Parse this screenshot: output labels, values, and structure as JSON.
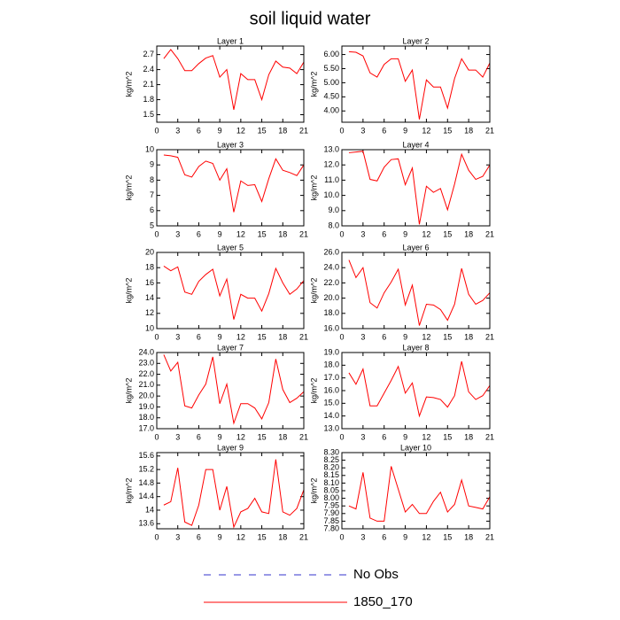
{
  "title": "soil liquid water",
  "legend": [
    {
      "name": "No Obs",
      "color": "#3333cc",
      "dashed": true
    },
    {
      "name": "1850_170",
      "color": "#ff0000"
    }
  ],
  "chart_data": [
    {
      "type": "line",
      "title": "Layer 1",
      "ylabel": "kg/m^2",
      "color": "#ff0000",
      "x": [
        1,
        2,
        3,
        4,
        5,
        6,
        7,
        8,
        9,
        10,
        11,
        12,
        13,
        14,
        15,
        16,
        17,
        18,
        19,
        20,
        21
      ],
      "values": [
        2.62,
        2.8,
        2.62,
        2.38,
        2.38,
        2.52,
        2.63,
        2.68,
        2.25,
        2.4,
        1.6,
        2.32,
        2.2,
        2.2,
        1.8,
        2.3,
        2.57,
        2.45,
        2.43,
        2.32,
        2.55
      ],
      "xlim": [
        0,
        21
      ],
      "xticks": [
        0,
        3,
        6,
        9,
        12,
        15,
        18,
        21
      ],
      "ylim": [
        1.35,
        2.87
      ],
      "yticks": [
        1.5,
        1.8,
        2.1,
        2.4,
        2.7
      ]
    },
    {
      "type": "line",
      "title": "Layer 2",
      "ylabel": "kg/m^2",
      "color": "#ff0000",
      "x": [
        1,
        2,
        3,
        4,
        5,
        6,
        7,
        8,
        9,
        10,
        11,
        12,
        13,
        14,
        15,
        16,
        17,
        18,
        19,
        20,
        21
      ],
      "values": [
        6.1,
        6.08,
        5.95,
        5.35,
        5.2,
        5.65,
        5.85,
        5.85,
        5.05,
        5.45,
        3.7,
        5.1,
        4.85,
        4.85,
        4.1,
        5.15,
        5.85,
        5.45,
        5.45,
        5.2,
        5.7
      ],
      "xlim": [
        0,
        21
      ],
      "xticks": [
        0,
        3,
        6,
        9,
        12,
        15,
        18,
        21
      ],
      "ylim": [
        3.6,
        6.3
      ],
      "yticks": [
        {
          "value": 4,
          "label": "4.00"
        },
        {
          "value": 4.5,
          "label": "4.50"
        },
        {
          "value": 5,
          "label": "5.00"
        },
        {
          "value": 5.5,
          "label": "5.50"
        },
        {
          "value": 6,
          "label": "6.00"
        }
      ]
    },
    {
      "type": "line",
      "title": "Layer 3",
      "ylabel": "kg/m^2",
      "color": "#ff0000",
      "x": [
        1,
        2,
        3,
        4,
        5,
        6,
        7,
        8,
        9,
        10,
        11,
        12,
        13,
        14,
        15,
        16,
        17,
        18,
        19,
        20,
        21
      ],
      "values": [
        9.65,
        9.6,
        9.5,
        8.35,
        8.2,
        8.9,
        9.25,
        9.1,
        8.0,
        8.75,
        5.9,
        7.95,
        7.65,
        7.7,
        6.6,
        8.1,
        9.4,
        8.65,
        8.5,
        8.3,
        9.0
      ],
      "xlim": [
        0,
        21
      ],
      "xticks": [
        0,
        3,
        6,
        9,
        12,
        15,
        18,
        21
      ],
      "ylim": [
        5,
        10
      ],
      "yticks": [
        5,
        6,
        7,
        8,
        9,
        10
      ]
    },
    {
      "type": "line",
      "title": "Layer 4",
      "ylabel": "kg/m^2",
      "color": "#ff0000",
      "x": [
        1,
        2,
        3,
        4,
        5,
        6,
        7,
        8,
        9,
        10,
        11,
        12,
        13,
        14,
        15,
        16,
        17,
        18,
        19,
        20,
        21
      ],
      "values": [
        12.8,
        12.85,
        12.9,
        11.05,
        10.95,
        11.85,
        12.35,
        12.4,
        10.7,
        11.8,
        8.1,
        10.6,
        10.2,
        10.45,
        9.05,
        10.75,
        12.7,
        11.65,
        11.05,
        11.25,
        12.0
      ],
      "xlim": [
        0,
        21
      ],
      "xticks": [
        0,
        3,
        6,
        9,
        12,
        15,
        18,
        21
      ],
      "ylim": [
        8,
        13
      ],
      "yticks": [
        {
          "value": 8,
          "label": "8.0"
        },
        {
          "value": 9,
          "label": "9.0"
        },
        {
          "value": 10,
          "label": "10.0"
        },
        {
          "value": 11,
          "label": "11.0"
        },
        {
          "value": 12,
          "label": "12.0"
        },
        {
          "value": 13,
          "label": "13.0"
        }
      ]
    },
    {
      "type": "line",
      "title": "Layer 5",
      "ylabel": "kg/m^2",
      "color": "#ff0000",
      "x": [
        1,
        2,
        3,
        4,
        5,
        6,
        7,
        8,
        9,
        10,
        11,
        12,
        13,
        14,
        15,
        16,
        17,
        18,
        19,
        20,
        21
      ],
      "values": [
        18.2,
        17.6,
        18.1,
        14.8,
        14.5,
        16.2,
        17.1,
        17.8,
        14.3,
        16.5,
        11.2,
        14.5,
        14.0,
        14.0,
        12.3,
        14.6,
        17.9,
        16.0,
        14.5,
        15.2,
        16.3
      ],
      "xlim": [
        0,
        21
      ],
      "xticks": [
        0,
        3,
        6,
        9,
        12,
        15,
        18,
        21
      ],
      "ylim": [
        10,
        20
      ],
      "yticks": [
        10,
        12,
        14,
        16,
        18,
        20
      ]
    },
    {
      "type": "line",
      "title": "Layer 6",
      "ylabel": "kg/m^2",
      "color": "#ff0000",
      "x": [
        1,
        2,
        3,
        4,
        5,
        6,
        7,
        8,
        9,
        10,
        11,
        12,
        13,
        14,
        15,
        16,
        17,
        18,
        19,
        20,
        21
      ],
      "values": [
        25.0,
        22.7,
        24.0,
        19.4,
        18.7,
        20.7,
        22.1,
        23.8,
        19.1,
        21.7,
        16.4,
        19.2,
        19.1,
        18.5,
        17.1,
        19.2,
        23.9,
        20.5,
        19.2,
        19.7,
        20.7
      ],
      "xlim": [
        0,
        21
      ],
      "xticks": [
        0,
        3,
        6,
        9,
        12,
        15,
        18,
        21
      ],
      "ylim": [
        16,
        26
      ],
      "yticks": [
        {
          "value": 16,
          "label": "16.0"
        },
        {
          "value": 18,
          "label": "18.0"
        },
        {
          "value": 20,
          "label": "20.0"
        },
        {
          "value": 22,
          "label": "22.0"
        },
        {
          "value": 24,
          "label": "24.0"
        },
        {
          "value": 26,
          "label": "26.0"
        }
      ]
    },
    {
      "type": "line",
      "title": "Layer 7",
      "ylabel": "kg/m^2",
      "color": "#ff0000",
      "x": [
        1,
        2,
        3,
        4,
        5,
        6,
        7,
        8,
        9,
        10,
        11,
        12,
        13,
        14,
        15,
        16,
        17,
        18,
        19,
        20,
        21
      ],
      "values": [
        23.8,
        22.3,
        23.1,
        19.1,
        18.9,
        20.1,
        21.1,
        23.6,
        19.3,
        21.1,
        17.5,
        19.3,
        19.3,
        18.9,
        17.9,
        19.4,
        23.4,
        20.6,
        19.4,
        19.8,
        20.4
      ],
      "xlim": [
        0,
        21
      ],
      "xticks": [
        0,
        3,
        6,
        9,
        12,
        15,
        18,
        21
      ],
      "ylim": [
        17,
        24
      ],
      "yticks": [
        {
          "value": 17,
          "label": "17.0"
        },
        {
          "value": 18,
          "label": "18.0"
        },
        {
          "value": 19,
          "label": "19.0"
        },
        {
          "value": 20,
          "label": "20.0"
        },
        {
          "value": 21,
          "label": "21.0"
        },
        {
          "value": 22,
          "label": "22.0"
        },
        {
          "value": 23,
          "label": "23.0"
        },
        {
          "value": 24,
          "label": "24.0"
        }
      ]
    },
    {
      "type": "line",
      "title": "Layer 8",
      "ylabel": "kg/m^2",
      "color": "#ff0000",
      "x": [
        1,
        2,
        3,
        4,
        5,
        6,
        7,
        8,
        9,
        10,
        11,
        12,
        13,
        14,
        15,
        16,
        17,
        18,
        19,
        20,
        21
      ],
      "values": [
        17.4,
        16.5,
        17.7,
        14.8,
        14.8,
        15.8,
        16.8,
        17.9,
        15.8,
        16.6,
        14.0,
        15.5,
        15.45,
        15.3,
        14.7,
        15.6,
        18.3,
        15.9,
        15.3,
        15.6,
        16.4
      ],
      "xlim": [
        0,
        21
      ],
      "xticks": [
        0,
        3,
        6,
        9,
        12,
        15,
        18,
        21
      ],
      "ylim": [
        13,
        19
      ],
      "yticks": [
        {
          "value": 13,
          "label": "13.0"
        },
        {
          "value": 14,
          "label": "14.0"
        },
        {
          "value": 15,
          "label": "15.0"
        },
        {
          "value": 16,
          "label": "16.0"
        },
        {
          "value": 17,
          "label": "17.0"
        },
        {
          "value": 18,
          "label": "18.0"
        },
        {
          "value": 19,
          "label": "19.0"
        }
      ]
    },
    {
      "type": "line",
      "title": "Layer 9",
      "ylabel": "kg/m^2",
      "color": "#ff0000",
      "x": [
        1,
        2,
        3,
        4,
        5,
        6,
        7,
        8,
        9,
        10,
        11,
        12,
        13,
        14,
        15,
        16,
        17,
        18,
        19,
        20,
        21
      ],
      "values": [
        14.15,
        14.25,
        15.25,
        13.65,
        13.55,
        14.15,
        15.2,
        15.2,
        14.0,
        14.7,
        13.5,
        13.95,
        14.05,
        14.35,
        13.95,
        13.9,
        15.5,
        13.95,
        13.85,
        14.05,
        14.6
      ],
      "xlim": [
        0,
        21
      ],
      "xticks": [
        0,
        3,
        6,
        9,
        12,
        15,
        18,
        21
      ],
      "ylim": [
        13.45,
        15.7
      ],
      "yticks": [
        13.6,
        14.0,
        14.4,
        14.8,
        15.2,
        15.6
      ]
    },
    {
      "type": "line",
      "title": "Layer 10",
      "ylabel": "kg/m^2",
      "color": "#ff0000",
      "x": [
        1,
        2,
        3,
        4,
        5,
        6,
        7,
        8,
        9,
        10,
        11,
        12,
        13,
        14,
        15,
        16,
        17,
        18,
        19,
        20,
        21
      ],
      "values": [
        7.95,
        7.93,
        8.17,
        7.87,
        7.85,
        7.85,
        8.21,
        8.06,
        7.91,
        7.96,
        7.9,
        7.9,
        7.98,
        8.04,
        7.91,
        7.96,
        8.12,
        7.95,
        7.94,
        7.93,
        8.01
      ],
      "xlim": [
        0,
        21
      ],
      "xticks": [
        0,
        3,
        6,
        9,
        12,
        15,
        18,
        21
      ],
      "ylim": [
        7.8,
        8.3
      ],
      "yticks": [
        {
          "value": 7.8,
          "label": "7.80"
        },
        {
          "value": 7.85,
          "label": "7.85"
        },
        {
          "value": 7.9,
          "label": "7.90"
        },
        {
          "value": 7.95,
          "label": "7.95"
        },
        {
          "value": 8.0,
          "label": "8.00"
        },
        {
          "value": 8.05,
          "label": "8.05"
        },
        {
          "value": 8.1,
          "label": "8.10"
        },
        {
          "value": 8.15,
          "label": "8.15"
        },
        {
          "value": 8.2,
          "label": "8.20"
        },
        {
          "value": 8.25,
          "label": "8.25"
        },
        {
          "value": 8.3,
          "label": "8.30"
        }
      ]
    }
  ]
}
